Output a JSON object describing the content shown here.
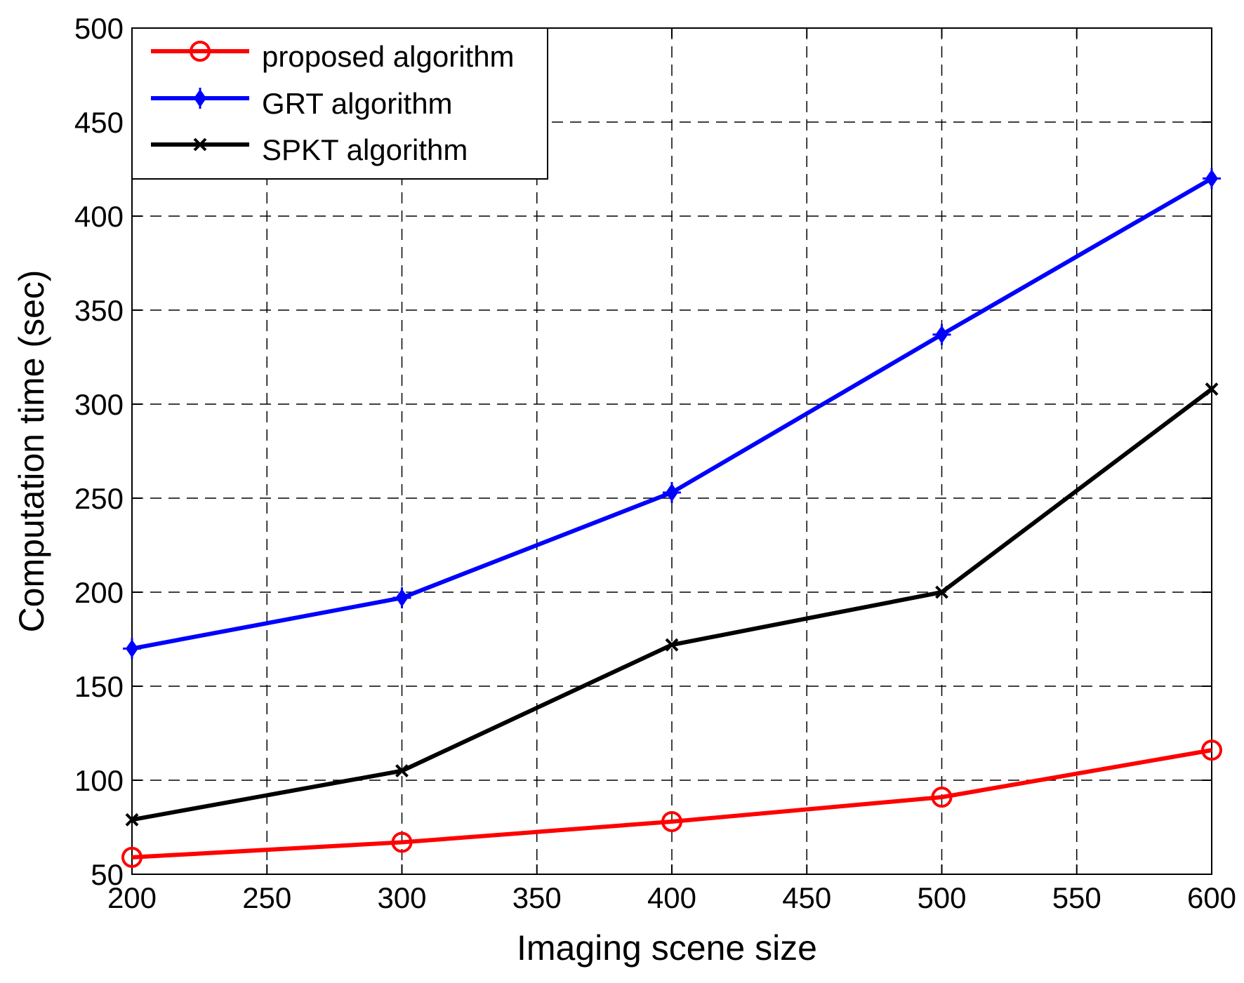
{
  "chart_data": {
    "type": "line",
    "xlabel": "Imaging scene size",
    "ylabel": "Computation time (sec)",
    "xlim": [
      200,
      600
    ],
    "ylim": [
      50,
      500
    ],
    "xticks": [
      200,
      250,
      300,
      350,
      400,
      450,
      500,
      550,
      600
    ],
    "yticks": [
      50,
      100,
      150,
      200,
      250,
      300,
      350,
      400,
      450,
      500
    ],
    "grid": true,
    "legend_position": "top-left",
    "x": [
      200,
      300,
      400,
      500,
      600
    ],
    "series": [
      {
        "name": "proposed algorithm",
        "values": [
          59,
          67,
          78,
          91,
          116
        ],
        "color": "#ff0000",
        "marker": "circle"
      },
      {
        "name": "GRT algorithm",
        "values": [
          170,
          197,
          253,
          337,
          420
        ],
        "color": "#0000ff",
        "marker": "diamond"
      },
      {
        "name": "SPKT algorithm",
        "values": [
          79,
          105,
          172,
          200,
          308
        ],
        "color": "#000000",
        "marker": "x"
      }
    ]
  }
}
